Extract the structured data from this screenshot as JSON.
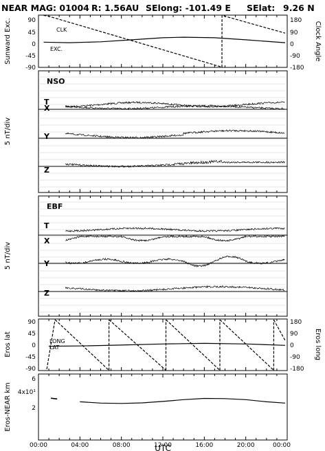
{
  "header": {
    "instrument": "NEAR MAG: 01004",
    "distance": "R: 1.56AU",
    "selong": "SElong: -101.49 E",
    "selat_label": "SElat:",
    "selat_value": "9.26 N"
  },
  "x_axis": {
    "label": "UTC",
    "ticks": [
      "00:00",
      "04:00",
      "08:00",
      "12:00",
      "16:00",
      "20:00",
      "00:00"
    ]
  },
  "chart_data": [
    {
      "type": "line",
      "panel": "sunward-clock",
      "ylabel_left": "Sunward Exc.",
      "ylabel_right": "Clock Angle",
      "left_ticks": [
        "90",
        "45",
        "0",
        "-45",
        "-90"
      ],
      "right_ticks": [
        "180",
        "90",
        "0",
        "-90",
        "-180"
      ],
      "ylim_left": [
        -90,
        90
      ],
      "ylim_right": [
        -180,
        180
      ],
      "series": [
        {
          "name": "CLK",
          "axis": "right",
          "style": "dashed",
          "x": [
            0.5,
            1.0,
            17.7,
            17.71,
            23.8
          ],
          "y": [
            178,
            172,
            -178,
            178,
            56
          ]
        },
        {
          "name": "EXC.",
          "axis": "left",
          "style": "solid",
          "x": [
            0.5,
            1.5,
            3,
            6,
            9,
            12,
            14,
            17,
            20,
            23.8
          ],
          "y": [
            -3,
            -4,
            -5,
            -2,
            5,
            12,
            14,
            12,
            5,
            -5
          ]
        }
      ]
    },
    {
      "type": "line",
      "panel": "nso",
      "title": "NSO",
      "ylabel": "5 nT/div",
      "traces": [
        "T",
        "X",
        "Y",
        "Z"
      ],
      "grid": true,
      "note": "noisy magnetic field components, data gap before ~02:30"
    },
    {
      "type": "line",
      "panel": "ebf",
      "title": "EBF",
      "ylabel": "5 nT/div",
      "traces": [
        "T",
        "X",
        "Y",
        "Z"
      ],
      "grid": true
    },
    {
      "type": "line",
      "panel": "eros-lat-long",
      "ylabel_left": "Eros lat",
      "ylabel_right": "Eros long",
      "left_ticks": [
        "90",
        "45",
        "0",
        "-45",
        "-90"
      ],
      "right_ticks": [
        "180",
        "90",
        "0",
        "-90",
        "-180"
      ],
      "ylim_left": [
        -90,
        90
      ],
      "ylim_right": [
        -180,
        180
      ],
      "series": [
        {
          "name": "LONG",
          "axis": "right",
          "style": "dashed",
          "sawtooth_wraps_hours": [
            1.6,
            6.8,
            12.3,
            17.5,
            22.7
          ]
        },
        {
          "name": "LAT",
          "axis": "left",
          "style": "solid",
          "x": [
            1,
            4,
            8,
            12,
            16,
            20,
            23.8
          ],
          "y": [
            -5,
            -4,
            -1,
            3,
            5,
            3,
            -2
          ]
        }
      ]
    },
    {
      "type": "line",
      "panel": "eros-near-distance",
      "ylabel": "Eros-NEAR km",
      "ticks": [
        "6",
        "4x10¹",
        "2"
      ],
      "series": [
        {
          "name": "distance",
          "x": [
            1.2,
            1.8,
            4,
            6,
            8,
            10,
            12,
            14,
            16,
            18,
            20,
            22,
            23.8
          ],
          "y": [
            37.6,
            37.2,
            35.6,
            34.9,
            34.7,
            35.0,
            35.8,
            36.8,
            37.5,
            37.4,
            36.8,
            35.6,
            34.9
          ]
        }
      ]
    }
  ]
}
